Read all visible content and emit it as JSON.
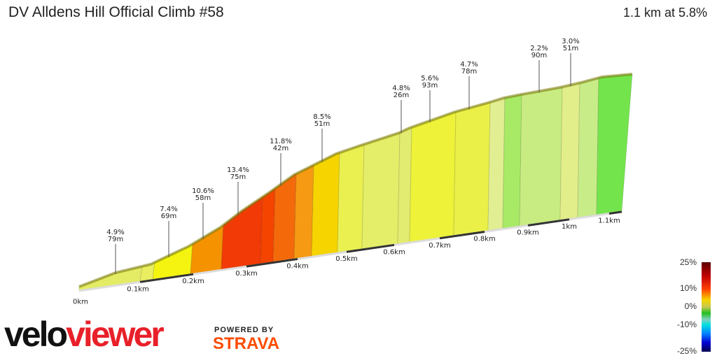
{
  "title": "DV Alldens Hill Official Climb #58",
  "summary": "1.1 km at 5.8%",
  "chart_data": {
    "type": "area",
    "title": "DV Alldens Hill Official Climb #58",
    "distance_km": 1.1,
    "avg_grade_pct": 5.8,
    "x_ticks": [
      "0km",
      "0.1km",
      "0.2km",
      "0.3km",
      "0.4km",
      "0.5km",
      "0.6km",
      "0.7km",
      "0.8km",
      "0.9km",
      "1km",
      "1.1km"
    ],
    "segment_colors": [
      "#e4ec66",
      "#e8ee60",
      "#f4f410",
      "#f59200",
      "#f23a06",
      "#f54400",
      "#f46a0a",
      "#f59a12",
      "#f5d400",
      "#eaf050",
      "#e4ee68",
      "#e2ec70",
      "#eef238",
      "#eaf048",
      "#e2ee92",
      "#a8ea66",
      "#c8ec82",
      "#e2ee8a",
      "#c8ec88",
      "#74e44c"
    ],
    "annotations": [
      {
        "grade": "4.9%",
        "length": "79m"
      },
      {
        "grade": "7.4%",
        "length": "69m"
      },
      {
        "grade": "10.6%",
        "length": "58m"
      },
      {
        "grade": "13.4%",
        "length": "75m"
      },
      {
        "grade": "11.8%",
        "length": "42m"
      },
      {
        "grade": "8.5%",
        "length": "51m"
      },
      {
        "grade": "4.8%",
        "length": "26m"
      },
      {
        "grade": "5.6%",
        "length": "93m"
      },
      {
        "grade": "4.7%",
        "length": "78m"
      },
      {
        "grade": "2.2%",
        "length": "90m"
      },
      {
        "grade": "3.0%",
        "length": "51m"
      }
    ],
    "legend": {
      "labels": [
        "25%",
        "10%",
        "0%",
        "-10%",
        "-25%"
      ],
      "stops": [
        "#5a0000",
        "#c00000",
        "#ff4000",
        "#f5d400",
        "#c8c850",
        "#20c020",
        "#80d0c0",
        "#00e0e0",
        "#0080ff",
        "#0000d0",
        "#000050"
      ]
    }
  },
  "branding": {
    "logo_left": "velo",
    "logo_right": "viewer",
    "powered": "POWERED BY",
    "strava": "STRAVA"
  }
}
